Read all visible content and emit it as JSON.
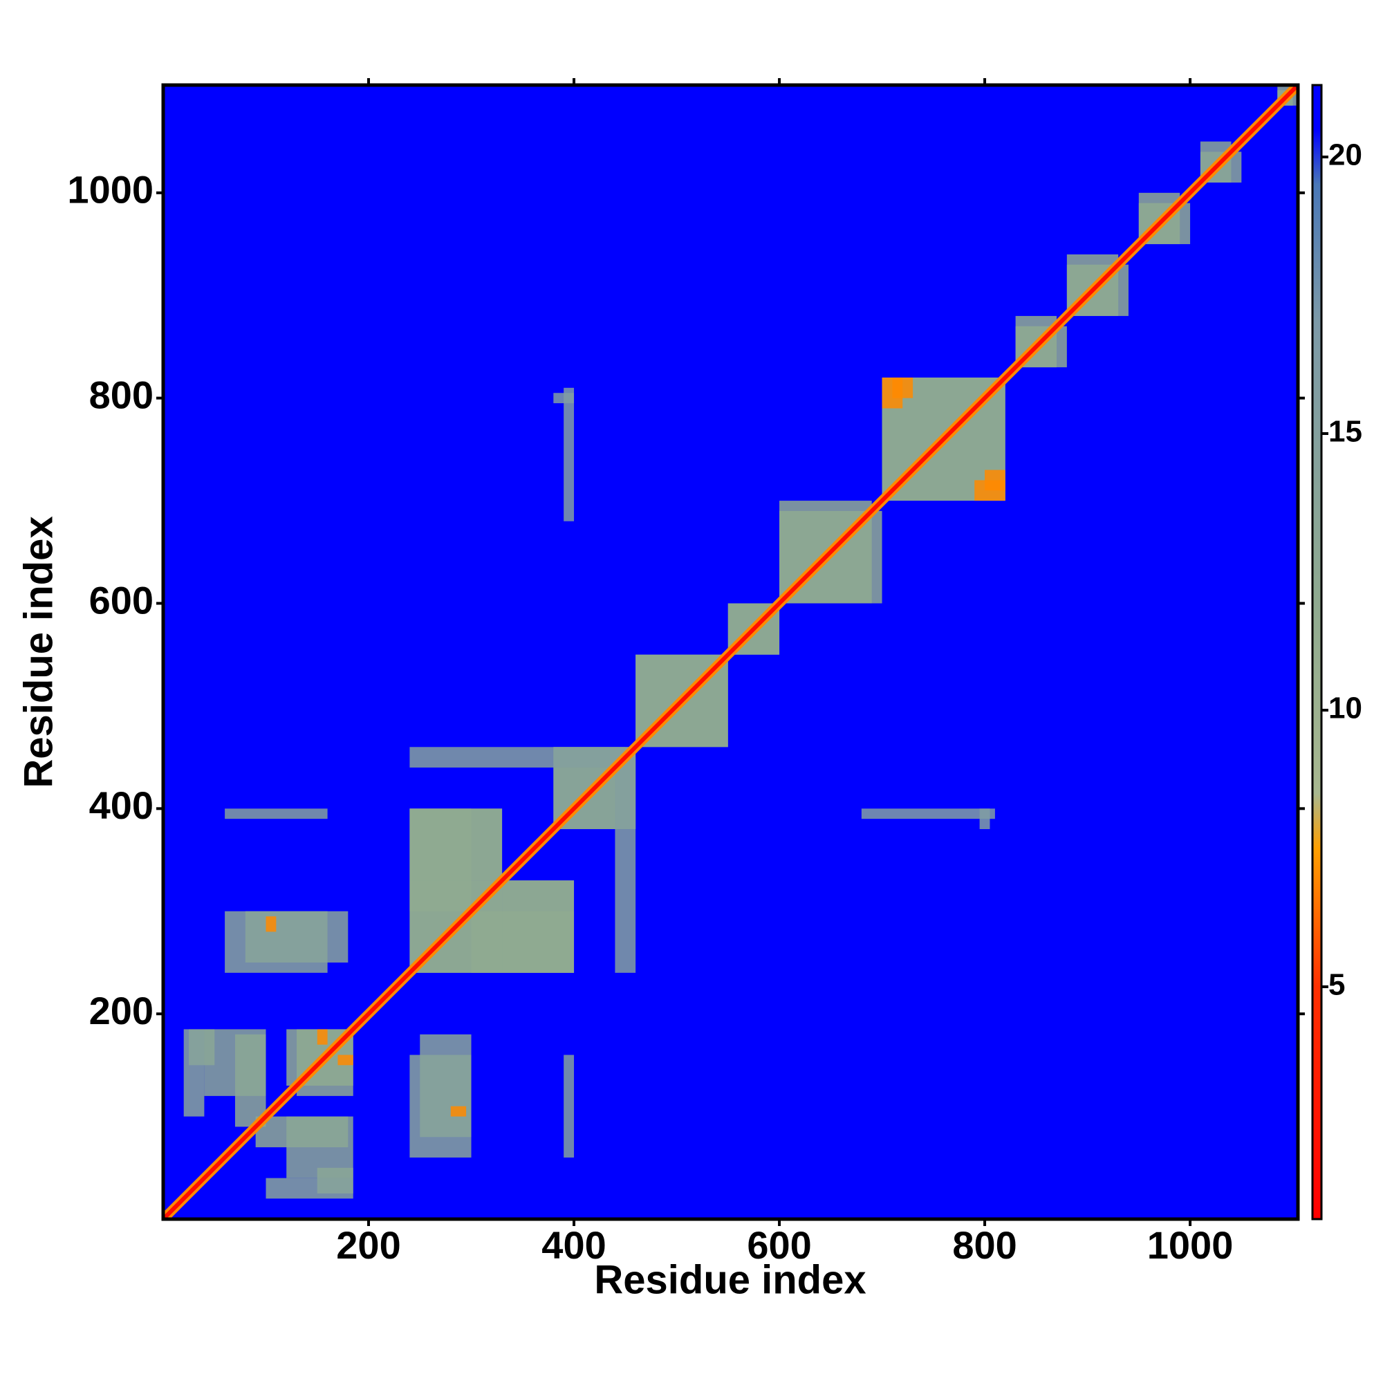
{
  "chart_data": {
    "type": "heatmap",
    "xlabel": "Residue index",
    "ylabel": "Residue index",
    "xlim": [
      0,
      1105
    ],
    "ylim": [
      0,
      1105
    ],
    "xticks": [
      200,
      400,
      600,
      800,
      1000
    ],
    "yticks": [
      200,
      400,
      600,
      800,
      1000
    ],
    "clim": [
      0.8,
      21.3
    ],
    "cticks": [
      5,
      10,
      15,
      20
    ],
    "colorscale": [
      [
        0.8,
        "#ff0000"
      ],
      [
        5,
        "#ff3000"
      ],
      [
        7.5,
        "#ffa000"
      ],
      [
        8.5,
        "#a8b890"
      ],
      [
        12,
        "#8faa90"
      ],
      [
        17,
        "#7d9aa8"
      ],
      [
        19.5,
        "#4a78b8"
      ],
      [
        20.5,
        "#0000ff"
      ],
      [
        21.3,
        "#0000ff"
      ]
    ],
    "background": 21,
    "symmetric": true,
    "cells": [
      {
        "x": [
          25,
          50
        ],
        "y": [
          150,
          185
        ],
        "value": 13
      },
      {
        "x": [
          70,
          100
        ],
        "y": [
          90,
          180
        ],
        "value": 12
      },
      {
        "x": [
          120,
          185
        ],
        "y": [
          130,
          185
        ],
        "value": 12
      },
      {
        "x": [
          120,
          185
        ],
        "y": [
          40,
          100
        ],
        "value": 13
      },
      {
        "x": [
          100,
          185
        ],
        "y": [
          20,
          40
        ],
        "value": 14
      },
      {
        "x": [
          240,
          330
        ],
        "y": [
          240,
          400
        ],
        "value": 12
      },
      {
        "x": [
          330,
          400
        ],
        "y": [
          240,
          330
        ],
        "value": 12
      },
      {
        "x": [
          240,
          300
        ],
        "y": [
          300,
          400
        ],
        "value": 12
      },
      {
        "x": [
          380,
          460
        ],
        "y": [
          380,
          460
        ],
        "value": 13
      },
      {
        "x": [
          240,
          450
        ],
        "y": [
          440,
          460
        ],
        "value": 15
      },
      {
        "x": [
          80,
          180
        ],
        "y": [
          250,
          300
        ],
        "value": 14
      },
      {
        "x": [
          240,
          300
        ],
        "y": [
          60,
          160
        ],
        "value": 14
      },
      {
        "x": [
          390,
          400
        ],
        "y": [
          60,
          160
        ],
        "value": 15
      },
      {
        "x": [
          460,
          550
        ],
        "y": [
          460,
          550
        ],
        "value": 12
      },
      {
        "x": [
          550,
          600
        ],
        "y": [
          550,
          600
        ],
        "value": 12
      },
      {
        "x": [
          600,
          690
        ],
        "y": [
          600,
          700
        ],
        "value": 12
      },
      {
        "x": [
          700,
          820
        ],
        "y": [
          700,
          820
        ],
        "value": 12
      },
      {
        "x": [
          830,
          870
        ],
        "y": [
          830,
          880
        ],
        "value": 12
      },
      {
        "x": [
          880,
          930
        ],
        "y": [
          880,
          940
        ],
        "value": 12
      },
      {
        "x": [
          950,
          990
        ],
        "y": [
          950,
          1000
        ],
        "value": 12
      },
      {
        "x": [
          1010,
          1040
        ],
        "y": [
          1010,
          1050
        ],
        "value": 13
      },
      {
        "x": [
          1085,
          1100
        ],
        "y": [
          1085,
          1105
        ],
        "value": 12
      },
      {
        "x": [
          390,
          400
        ],
        "y": [
          680,
          810
        ],
        "value": 16
      },
      {
        "x": [
          795,
          805
        ],
        "y": [
          380,
          400
        ],
        "value": 16
      },
      {
        "x": [
          280,
          295
        ],
        "y": [
          100,
          110
        ],
        "value": 7
      },
      {
        "x": [
          150,
          160
        ],
        "y": [
          170,
          185
        ],
        "value": 7
      },
      {
        "x": [
          710,
          730
        ],
        "y": [
          800,
          820
        ],
        "value": 7
      },
      {
        "x": [
          790,
          820
        ],
        "y": [
          700,
          720
        ],
        "value": 7
      }
    ],
    "diagonal": [
      {
        "x": [
          0,
          1105
        ],
        "y": [
          0,
          1105
        ],
        "value": 7
      },
      {
        "x": [
          0,
          1105
        ],
        "y": [
          0,
          1105
        ],
        "value": 2
      }
    ]
  }
}
